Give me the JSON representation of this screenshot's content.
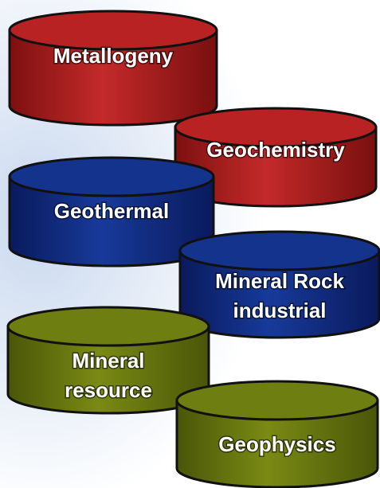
{
  "nodes": [
    {
      "label": [
        "Metallogeny"
      ]
    },
    {
      "label": [
        "Geochemistry"
      ]
    },
    {
      "label": [
        "Geothermal"
      ]
    },
    {
      "label": [
        "Mineral Rock",
        "industrial"
      ]
    },
    {
      "label": [
        "Mineral",
        "resource"
      ]
    },
    {
      "label": [
        "Geophysics"
      ]
    }
  ]
}
